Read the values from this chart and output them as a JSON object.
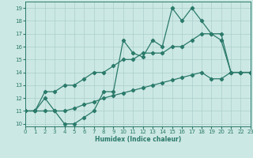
{
  "xlabel": "Humidex (Indice chaleur)",
  "x_values": [
    0,
    1,
    2,
    3,
    4,
    5,
    6,
    7,
    8,
    9,
    10,
    11,
    12,
    13,
    14,
    15,
    16,
    17,
    18,
    19,
    20,
    21,
    22,
    23
  ],
  "line1_y": [
    11,
    11,
    12,
    11,
    10,
    10,
    10.5,
    11,
    12.5,
    12.5,
    16.5,
    15.5,
    15.2,
    16.5,
    16,
    19,
    18,
    19,
    18,
    17,
    16.5,
    14,
    14,
    14
  ],
  "line2_y": [
    11,
    11,
    12.5,
    12.5,
    13,
    13,
    13.5,
    14,
    14,
    14.5,
    15,
    15,
    15.5,
    15.5,
    15.5,
    16,
    16,
    16.5,
    17,
    17,
    17,
    14,
    14,
    14
  ],
  "line3_y": [
    11,
    11,
    11,
    11,
    11,
    11.2,
    11.5,
    11.7,
    12,
    12.2,
    12.4,
    12.6,
    12.8,
    13.0,
    13.2,
    13.4,
    13.6,
    13.8,
    14.0,
    13.5,
    13.5,
    14,
    14,
    14
  ],
  "line_color": "#2a7a6a",
  "bg_color": "#cce8e4",
  "grid_color": "#aacfcb",
  "xlim": [
    0,
    23
  ],
  "ylim": [
    9.8,
    19.5
  ],
  "xticks": [
    0,
    1,
    2,
    3,
    4,
    5,
    6,
    7,
    8,
    9,
    10,
    11,
    12,
    13,
    14,
    15,
    16,
    17,
    18,
    19,
    20,
    21,
    22,
    23
  ],
  "yticks": [
    10,
    11,
    12,
    13,
    14,
    15,
    16,
    17,
    18,
    19
  ],
  "marker": "D",
  "markersize": 2.2,
  "linewidth": 0.9,
  "tick_fontsize": 5.0,
  "xlabel_fontsize": 5.5
}
